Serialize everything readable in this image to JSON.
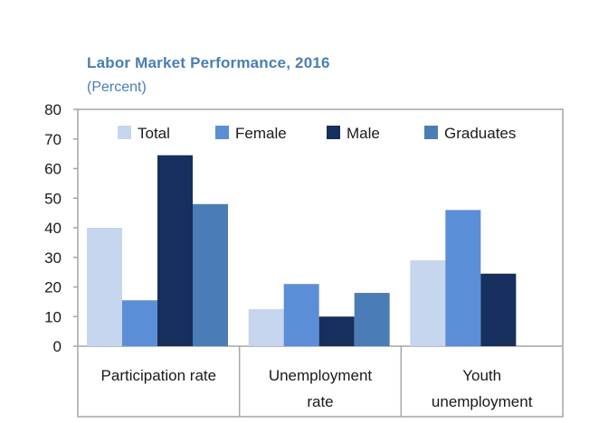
{
  "chart_data": {
    "type": "bar",
    "title": "Labor Market  Performance,  2016",
    "subtitle": "(Percent)",
    "categories": [
      "Participation rate",
      "Unemployment rate",
      "Youth unemployment"
    ],
    "category_lines": [
      [
        "Participation rate"
      ],
      [
        "Unemployment",
        "rate"
      ],
      [
        "Youth",
        "unemployment"
      ]
    ],
    "series": [
      {
        "name": "Total",
        "color": "#c5d6ee",
        "values": [
          40,
          12.5,
          29
        ]
      },
      {
        "name": "Female",
        "color": "#5b8ed6",
        "values": [
          15.5,
          21,
          46
        ]
      },
      {
        "name": "Male",
        "color": "#162f5c",
        "values": [
          64.5,
          10,
          24.5
        ]
      },
      {
        "name": "Graduates",
        "color": "#4a7db5",
        "values": [
          48,
          18,
          null
        ]
      }
    ],
    "ylim": [
      0,
      80
    ],
    "yticks": [
      "0",
      "10",
      "20",
      "30",
      "40",
      "50",
      "60",
      "70",
      "80"
    ],
    "legend_position": "top",
    "grid": false
  }
}
